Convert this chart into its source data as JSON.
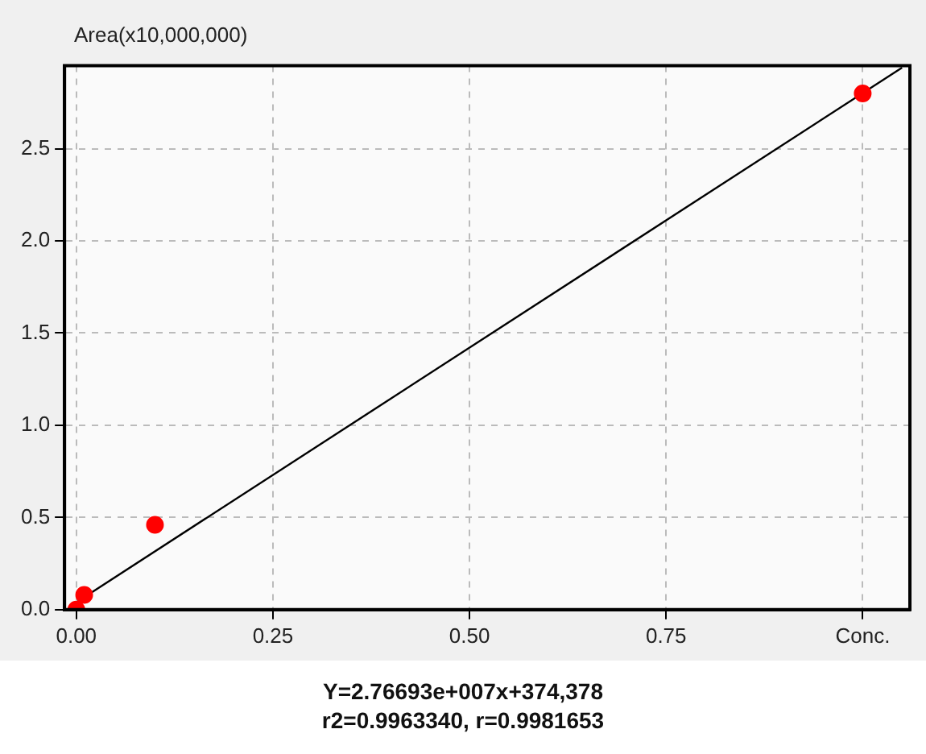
{
  "chart_data": {
    "type": "scatter",
    "ylabel": "Area(x10,000,000)",
    "series": [
      {
        "color": "#ff0000",
        "x": [
          0,
          0.01,
          0.1,
          1.0
        ],
        "values": [
          0,
          0.08,
          0.46,
          2.8
        ],
        "marker": "circle"
      },
      {
        "type": "line",
        "color": "#000000",
        "x": [
          0,
          1.05
        ],
        "values": [
          0.04,
          2.94
        ]
      }
    ],
    "xlim": [
      -0.015,
      1.06
    ],
    "ylim": [
      0,
      2.95
    ],
    "xticks": [
      {
        "value": 0,
        "label": "0.00"
      },
      {
        "value": 0.25,
        "label": "0.25"
      },
      {
        "value": 0.5,
        "label": "0.50"
      },
      {
        "value": 0.75,
        "label": "0.75"
      },
      {
        "value": 1,
        "label": "Conc."
      }
    ],
    "yticks": [
      {
        "value": 0,
        "label": "0.0"
      },
      {
        "value": 0.5,
        "label": "0.5"
      },
      {
        "value": 1,
        "label": "1.0"
      },
      {
        "value": 1.5,
        "label": "1.5"
      },
      {
        "value": 2,
        "label": "2.0"
      },
      {
        "value": 2.5,
        "label": "2.5"
      }
    ],
    "grid": true,
    "annotations": [
      "Y=2.76693e+007x+374,378",
      "r2=0.9963340, r=0.9981653"
    ]
  }
}
